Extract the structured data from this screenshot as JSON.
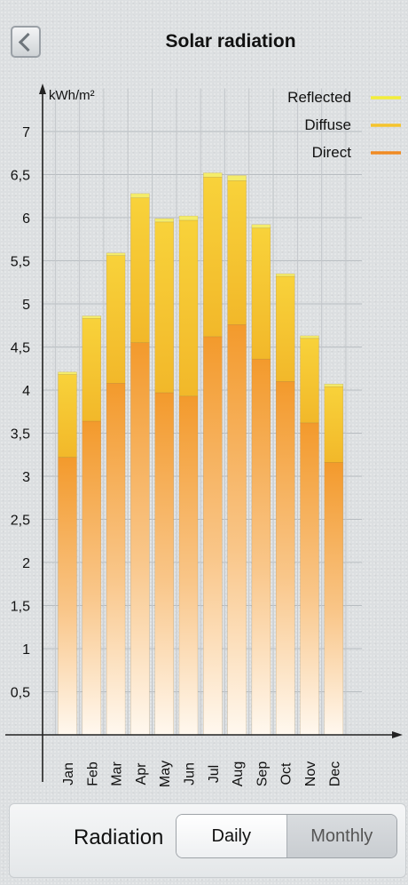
{
  "header": {
    "title": "Solar radiation",
    "back_icon": "chevron-left-icon"
  },
  "chart_data": {
    "type": "bar",
    "stacked": true,
    "categories": [
      "Jan",
      "Feb",
      "Mar",
      "Apr",
      "May",
      "Jun",
      "Jul",
      "Aug",
      "Sep",
      "Oct",
      "Nov",
      "Dec"
    ],
    "series": [
      {
        "name": "Direct",
        "color": "#f39a2c",
        "values": [
          3.22,
          3.64,
          4.08,
          4.55,
          3.97,
          3.93,
          4.62,
          4.76,
          4.36,
          4.1,
          3.62,
          3.16
        ]
      },
      {
        "name": "Diffuse",
        "color": "#f5c42c",
        "values": [
          0.96,
          1.19,
          1.48,
          1.68,
          1.98,
          2.04,
          1.85,
          1.67,
          1.52,
          1.22,
          0.98,
          0.88
        ]
      },
      {
        "name": "Reflected",
        "color": "#f2e85a",
        "values": [
          0.03,
          0.03,
          0.03,
          0.05,
          0.04,
          0.05,
          0.05,
          0.06,
          0.04,
          0.03,
          0.03,
          0.03
        ]
      }
    ],
    "ylabel": "kWh/m²",
    "ylim": [
      0,
      7.5
    ],
    "yticks": [
      "0,5",
      "1",
      "1,5",
      "2",
      "2,5",
      "3",
      "3,5",
      "4",
      "4,5",
      "5",
      "5,5",
      "6",
      "6,5",
      "7"
    ],
    "ytick_values": [
      0.5,
      1,
      1.5,
      2,
      2.5,
      3,
      3.5,
      4,
      4.5,
      5,
      5.5,
      6,
      6.5,
      7
    ],
    "grid": true,
    "legend_position": "top-right",
    "legend": [
      {
        "label": "Reflected",
        "color": "#f3ee3a"
      },
      {
        "label": "Diffuse",
        "color": "#f5c42c"
      },
      {
        "label": "Direct",
        "color": "#f08a22"
      }
    ]
  },
  "footer": {
    "label": "Radiation",
    "segments": [
      {
        "label": "Daily",
        "selected": true
      },
      {
        "label": "Monthly",
        "selected": false
      }
    ]
  }
}
